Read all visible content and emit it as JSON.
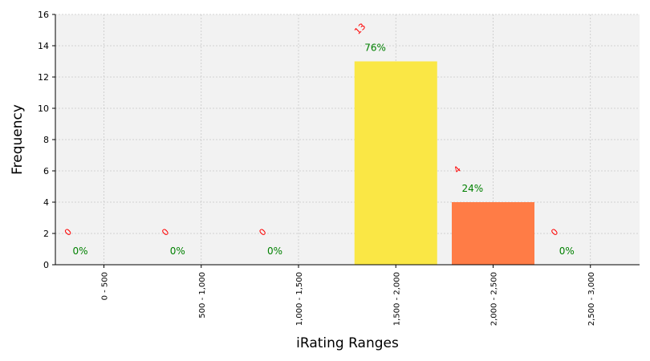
{
  "chart_data": {
    "type": "bar",
    "categories": [
      "0 - 500",
      "500 - 1,000",
      "1,000 - 1,500",
      "1,500 - 2,000",
      "2,000 - 2,500",
      "2,500 - 3,000"
    ],
    "values": [
      0,
      0,
      0,
      13,
      4,
      0
    ],
    "count_labels": [
      "0",
      "0",
      "0",
      "13",
      "4",
      "0"
    ],
    "percent_labels": [
      "0%",
      "0%",
      "0%",
      "76%",
      "24%",
      "0%"
    ],
    "bar_colors": [
      "#fde74c",
      "#fde74c",
      "#fde74c",
      "#fae745",
      "#ff7c46",
      "#ff7c46"
    ],
    "xlabel": "iRating Ranges",
    "ylabel": "Frequency",
    "ylim": [
      0,
      16
    ],
    "yticks": [
      0,
      2,
      4,
      6,
      8,
      10,
      12,
      14,
      16
    ],
    "grid": true,
    "count_label_color": "#ff0000",
    "percent_label_color": "#008000",
    "plot_background": "#f2f2f2"
  }
}
